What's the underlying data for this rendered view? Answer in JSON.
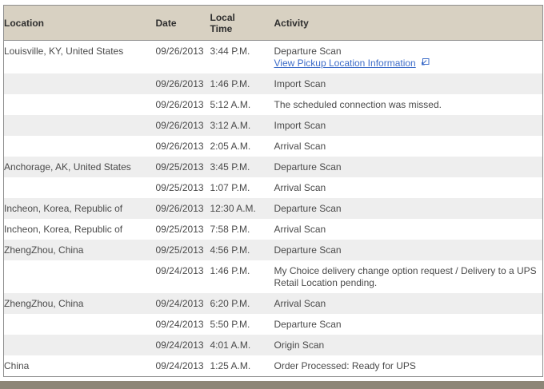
{
  "table": {
    "headers": [
      "Location",
      "Date",
      "Local Time",
      "Activity"
    ],
    "rows": [
      {
        "location": "Louisville, KY, United States",
        "date": "09/26/2013",
        "time": "3:44 P.M.",
        "activity": "Departure Scan",
        "link_label": "View Pickup Location Information"
      },
      {
        "location": "",
        "date": "09/26/2013",
        "time": "1:46 P.M.",
        "activity": "Import Scan"
      },
      {
        "location": "",
        "date": "09/26/2013",
        "time": "5:12 A.M.",
        "activity": "The scheduled connection was missed."
      },
      {
        "location": "",
        "date": "09/26/2013",
        "time": "3:12 A.M.",
        "activity": "Import Scan"
      },
      {
        "location": "",
        "date": "09/26/2013",
        "time": "2:05 A.M.",
        "activity": "Arrival Scan"
      },
      {
        "location": "Anchorage, AK, United States",
        "date": "09/25/2013",
        "time": "3:45 P.M.",
        "activity": "Departure Scan"
      },
      {
        "location": "",
        "date": "09/25/2013",
        "time": "1:07 P.M.",
        "activity": "Arrival Scan"
      },
      {
        "location": "Incheon, Korea, Republic of",
        "date": "09/26/2013",
        "time": "12:30 A.M.",
        "activity": "Departure Scan"
      },
      {
        "location": "Incheon, Korea, Republic of",
        "date": "09/25/2013",
        "time": "7:58 P.M.",
        "activity": "Arrival Scan"
      },
      {
        "location": "ZhengZhou, China",
        "date": "09/25/2013",
        "time": "4:56 P.M.",
        "activity": "Departure Scan"
      },
      {
        "location": "",
        "date": "09/24/2013",
        "time": "1:46 P.M.",
        "activity": "My Choice delivery change option request / Delivery to a UPS Retail Location pending."
      },
      {
        "location": "ZhengZhou, China",
        "date": "09/24/2013",
        "time": "6:20 P.M.",
        "activity": "Arrival Scan"
      },
      {
        "location": "",
        "date": "09/24/2013",
        "time": "5:50 P.M.",
        "activity": "Departure Scan"
      },
      {
        "location": "",
        "date": "09/24/2013",
        "time": "4:01 A.M.",
        "activity": "Origin Scan"
      },
      {
        "location": "China",
        "date": "09/24/2013",
        "time": "1:25 A.M.",
        "activity": "Order Processed: Ready for UPS"
      }
    ]
  },
  "icons": {
    "external_link": "popup-window-arrow-icon"
  },
  "colors": {
    "header_bg": "#d8d1c2",
    "table_border": "#8e8e8e",
    "stripe": "#eeeeee",
    "link": "#3d6cc8",
    "text": "#4a4a4a",
    "footer_bar": "#8d8677"
  }
}
